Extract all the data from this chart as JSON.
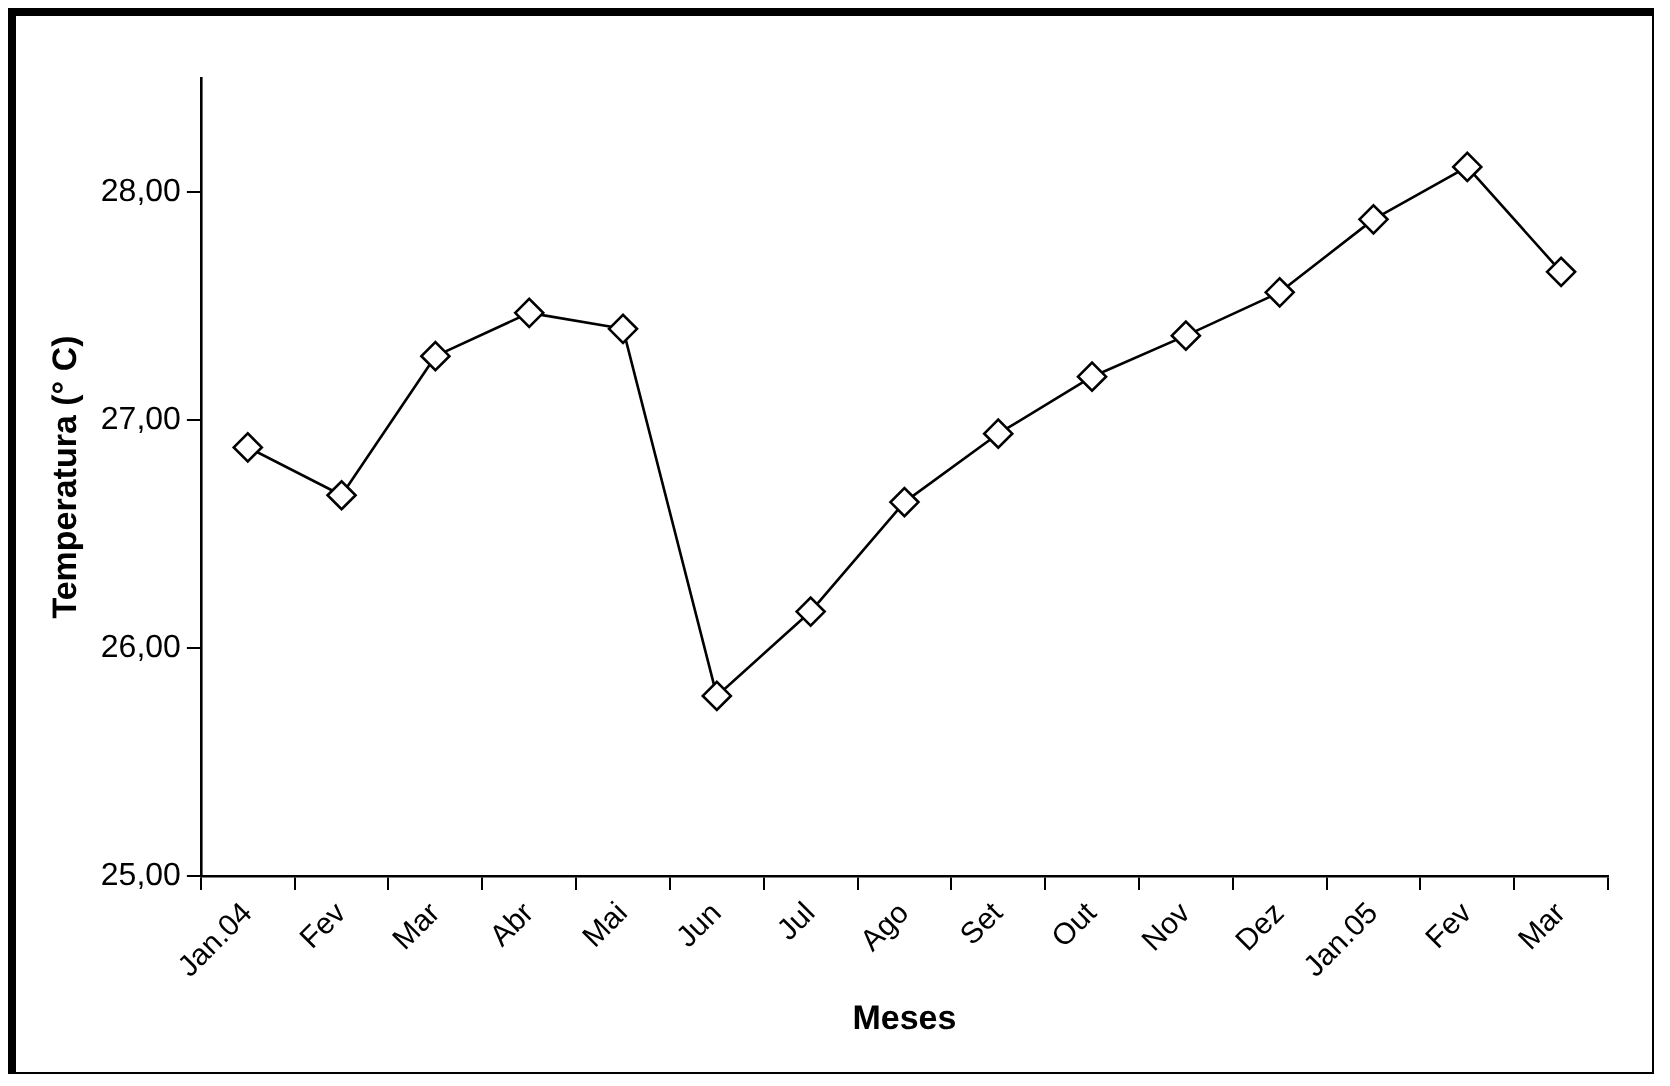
{
  "chart_data": {
    "type": "line",
    "xlabel": "Meses",
    "ylabel": "Temperatura (° C)",
    "categories": [
      "Jan.04",
      "Fev",
      "Mar",
      "Abr",
      "Mai",
      "Jun",
      "Jul",
      "Ago",
      "Set",
      "Out",
      "Nov",
      "Dez",
      "Jan.05",
      "Fev",
      "Mar"
    ],
    "series": [
      {
        "color": "#000000",
        "values": [
          26.88,
          26.67,
          27.28,
          27.47,
          27.4,
          25.79,
          26.16,
          26.64,
          26.94,
          27.19,
          27.37,
          27.56,
          27.88,
          28.11,
          27.65
        ]
      }
    ],
    "ylim": [
      25,
      28.5
    ],
    "yticks": [
      {
        "value": 25,
        "label": "25,00"
      },
      {
        "value": 26,
        "label": "26,00"
      },
      {
        "value": 27,
        "label": "27,00"
      },
      {
        "value": 28,
        "label": "28,00"
      }
    ],
    "grid": false,
    "legend": false,
    "marker": "diamond",
    "line_style": "solid"
  }
}
